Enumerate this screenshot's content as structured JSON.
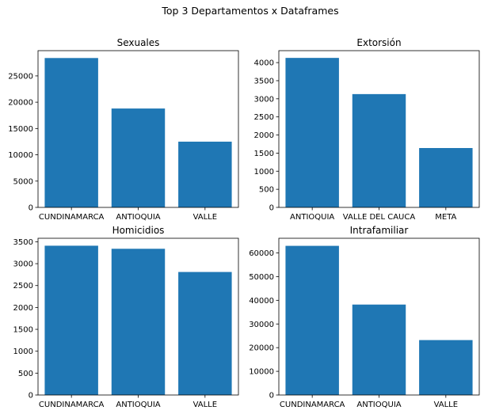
{
  "figure": {
    "suptitle": "Top 3 Departamentos x Dataframes",
    "bar_color": "#1f77b4"
  },
  "chart_data": [
    {
      "type": "bar",
      "title": "Sexuales",
      "categories": [
        "CUNDINAMARCA",
        "ANTIOQUIA",
        "VALLE"
      ],
      "values": [
        28400,
        18800,
        12500
      ],
      "ylim": [
        0,
        29800
      ],
      "yticks": [
        0,
        5000,
        10000,
        15000,
        20000,
        25000
      ],
      "grid": false
    },
    {
      "type": "bar",
      "title": "Extorsión",
      "categories": [
        "ANTIOQUIA",
        "VALLE DEL CAUCA",
        "META"
      ],
      "values": [
        4130,
        3130,
        1640
      ],
      "ylim": [
        0,
        4330
      ],
      "yticks": [
        0,
        500,
        1000,
        1500,
        2000,
        2500,
        3000,
        3500,
        4000
      ],
      "grid": false
    },
    {
      "type": "bar",
      "title": "Homicidios",
      "categories": [
        "CUNDINAMARCA",
        "ANTIOQUIA",
        "VALLE"
      ],
      "values": [
        3410,
        3340,
        2810
      ],
      "ylim": [
        0,
        3580
      ],
      "yticks": [
        0,
        500,
        1000,
        1500,
        2000,
        2500,
        3000,
        3500
      ],
      "grid": false
    },
    {
      "type": "bar",
      "title": "Intrafamiliar",
      "categories": [
        "CUNDINAMARCA",
        "ANTIOQUIA",
        "VALLE"
      ],
      "values": [
        63000,
        38200,
        23200
      ],
      "ylim": [
        0,
        66200
      ],
      "yticks": [
        0,
        10000,
        20000,
        30000,
        40000,
        50000,
        60000
      ],
      "grid": false
    }
  ]
}
